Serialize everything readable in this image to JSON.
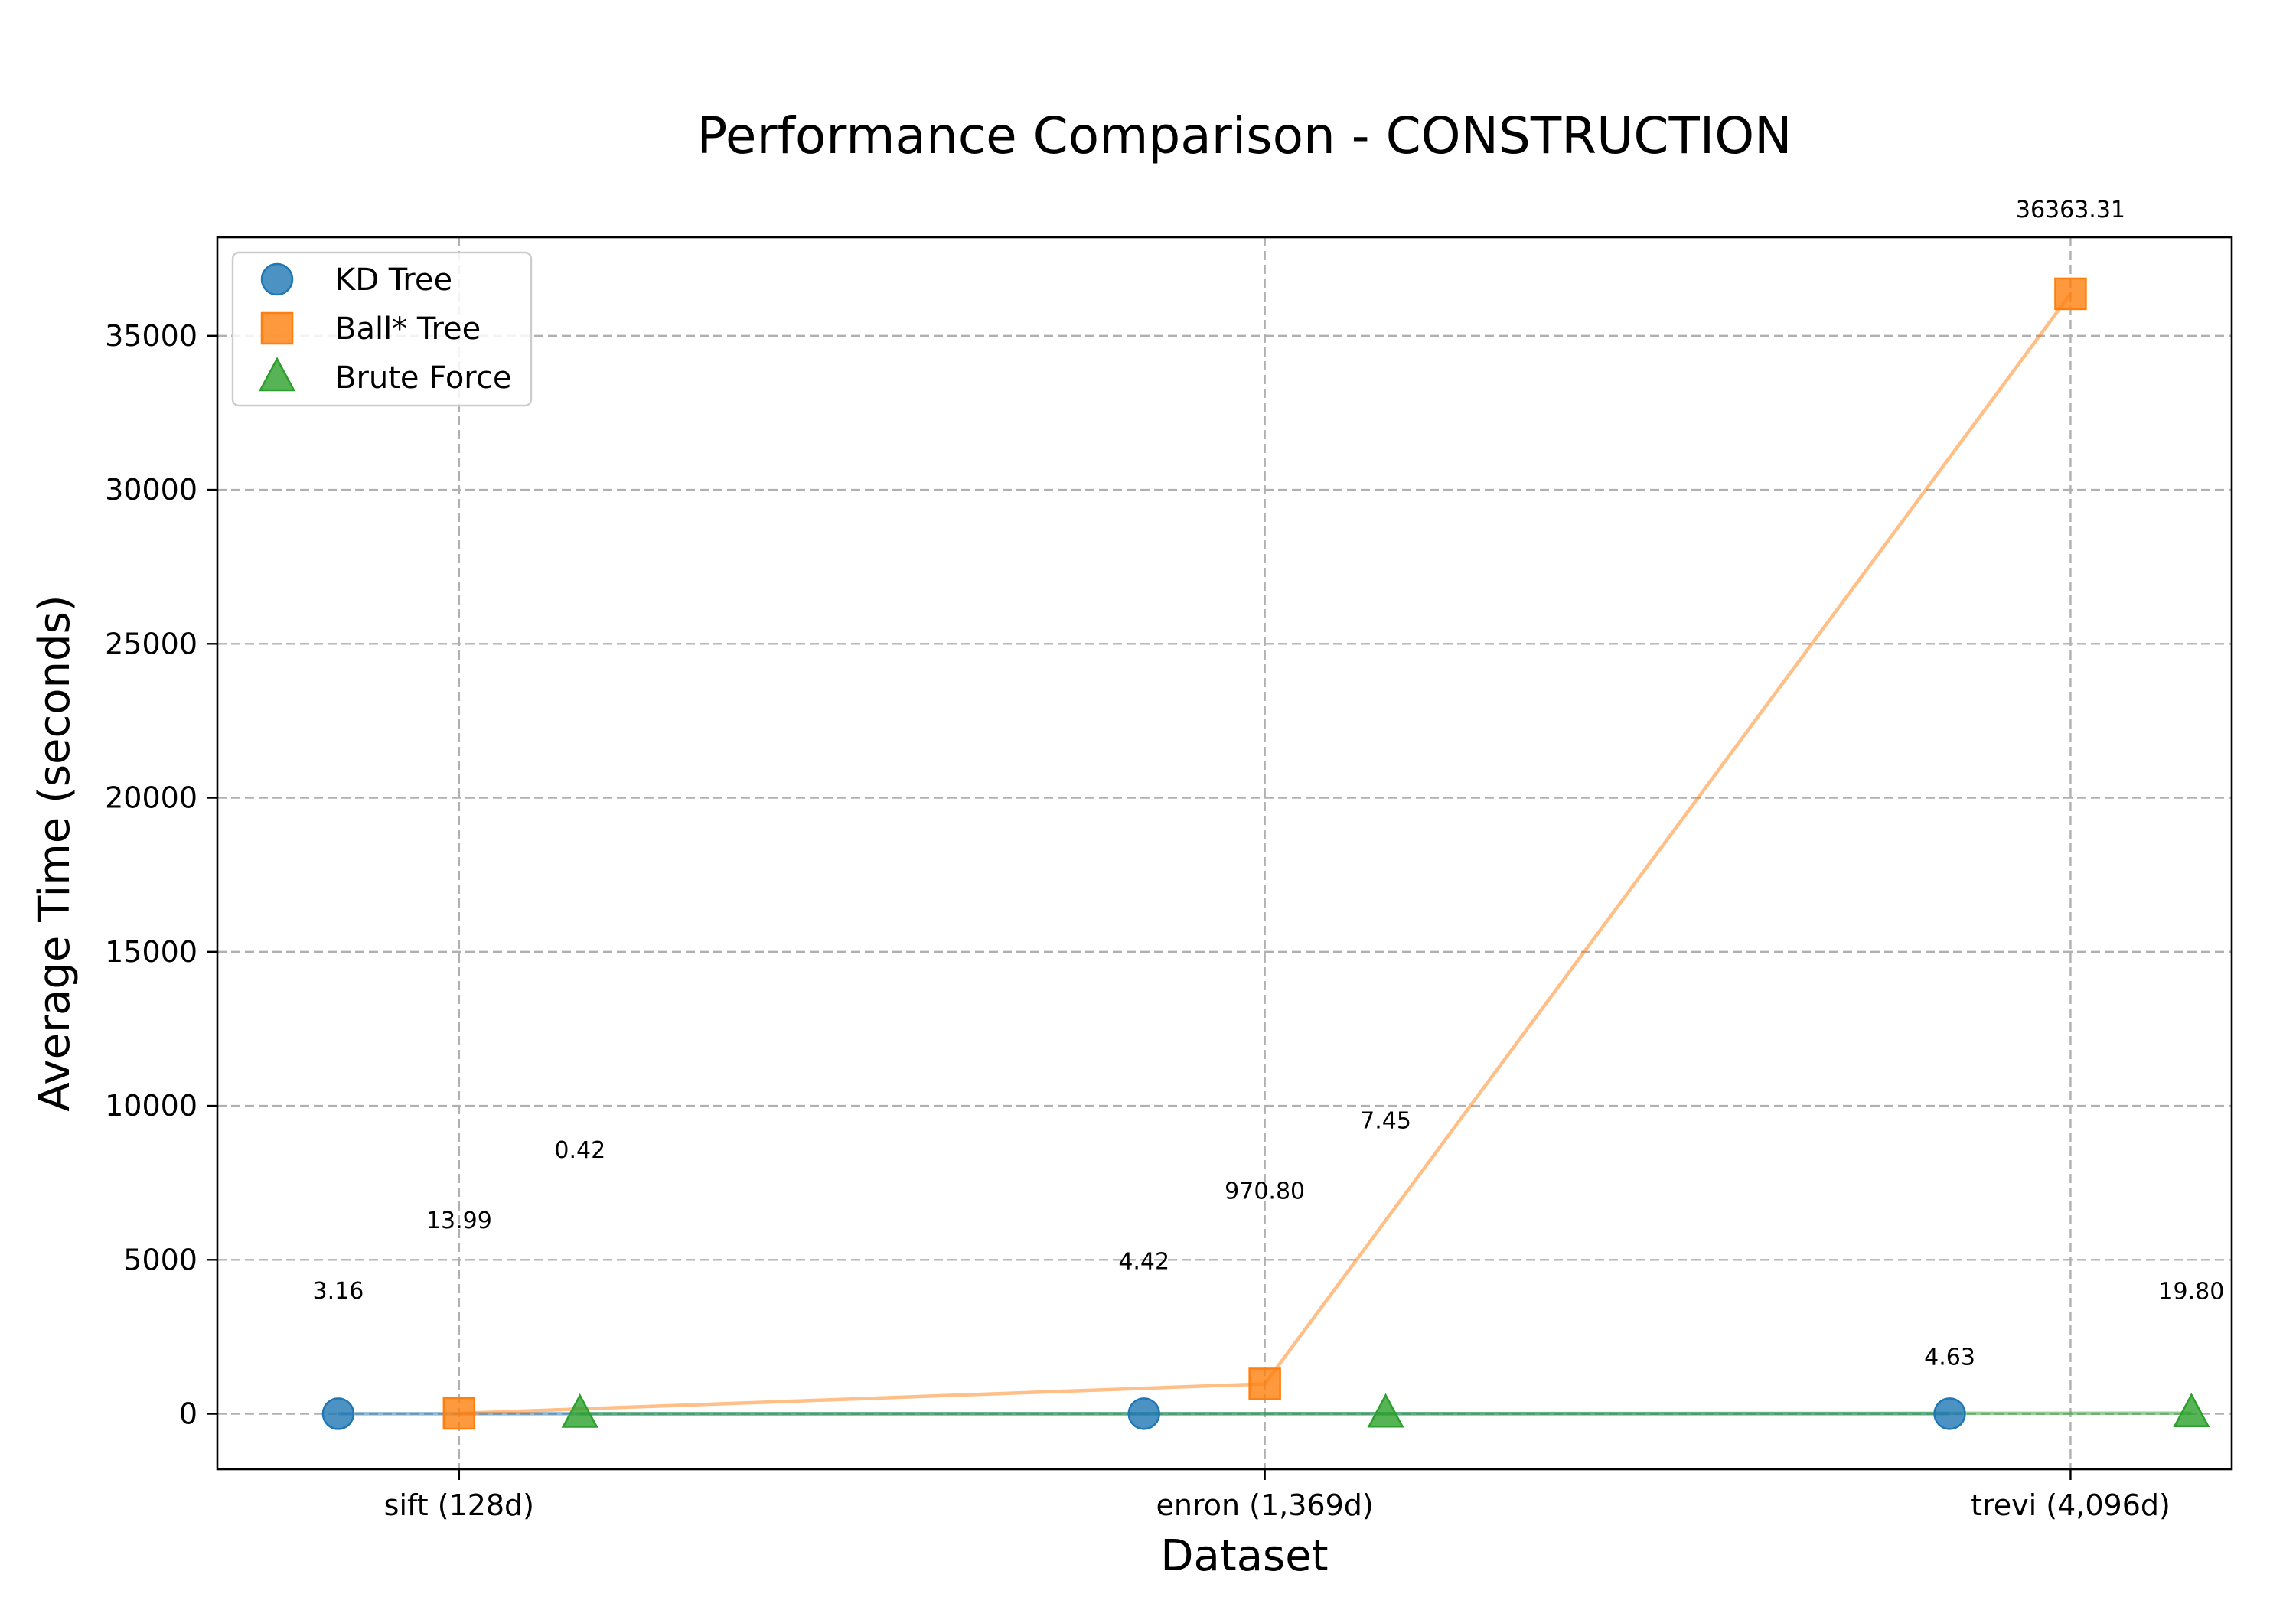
{
  "chart_data": {
    "type": "scatter",
    "title": "Performance Comparison - CONSTRUCTION",
    "xlabel": "Dataset",
    "ylabel": "Average Time (seconds)",
    "categories": [
      "sift (128d)",
      "enron (1,369d)",
      "trevi (4,096d)"
    ],
    "ylim": [
      -1800,
      38200
    ],
    "yticks": [
      0,
      5000,
      10000,
      15000,
      20000,
      25000,
      30000,
      35000
    ],
    "grid": true,
    "legend_position": "top-left",
    "series": [
      {
        "name": "KD Tree",
        "marker": "circle",
        "color": "#1f77b4",
        "offset": -0.15,
        "values": [
          3.16,
          4.42,
          4.63
        ],
        "labels": [
          "3.16",
          "4.42",
          "4.63"
        ]
      },
      {
        "name": "Ball* Tree",
        "marker": "square",
        "color": "#ff7f0e",
        "offset": 0,
        "values": [
          13.99,
          970.8,
          36363.31
        ],
        "labels": [
          "13.99",
          "970.80",
          "36363.31"
        ]
      },
      {
        "name": "Brute Force",
        "marker": "triangle",
        "color": "#2ca02c",
        "offset": 0.15,
        "values": [
          0.42,
          7.45,
          19.8
        ],
        "labels": [
          "0.42",
          "7.45",
          "19.80"
        ]
      }
    ]
  }
}
